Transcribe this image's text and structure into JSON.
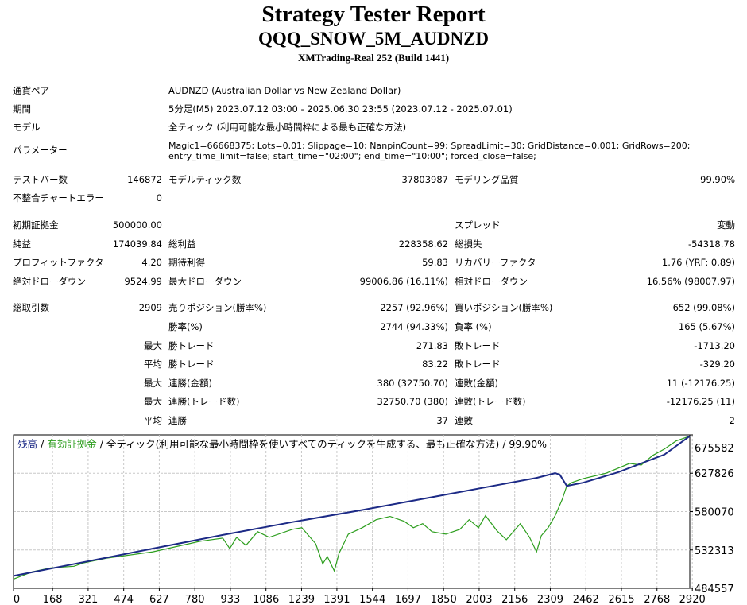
{
  "header": {
    "title": "Strategy Tester Report",
    "subtitle": "QQQ_SNOW_5M_AUDNZD",
    "server": "XMTrading-Real 252 (Build 1441)"
  },
  "info": {
    "pair_label": "通貨ペア",
    "pair": "AUDNZD (Australian Dollar vs New Zealand Dollar)",
    "period_label": "期間",
    "period": "5分足(M5) 2023.07.12 03:00 - 2025.06.30 23:55 (2023.07.12 - 2025.07.01)",
    "model_label": "モデル",
    "model": "全ティック (利用可能な最小時間枠による最も正確な方法)",
    "params_label": "パラメーター",
    "params_line1": "Magic1=66668375; Lots=0.01; Slippage=10; NanpinCount=99; SpreadLimit=30; GridDistance=0.001; GridRows=200;",
    "params_line2": "entry_time_limit=false; start_time=\"02:00\"; end_time=\"10:00\"; forced_close=false;"
  },
  "stats": {
    "bars_label": "テストバー数",
    "bars": "146872",
    "ticks_label": "モデルティック数",
    "ticks": "37803987",
    "quality_label": "モデリング品質",
    "quality": "99.90%",
    "mismatch_label": "不整合チャートエラー",
    "mismatch": "0",
    "deposit_label": "初期証拠金",
    "deposit": "500000.00",
    "spread_label": "スプレッド",
    "spread": "変動",
    "net_label": "純益",
    "net": "174039.84",
    "gross_profit_label": "総利益",
    "gross_profit": "228358.62",
    "gross_loss_label": "総損失",
    "gross_loss": "-54318.78",
    "pf_label": "プロフィットファクタ",
    "pf": "4.20",
    "expected_label": "期待利得",
    "expected": "59.83",
    "recovery_label": "リカバリーファクタ",
    "recovery": "1.76 (YRF: 0.89)",
    "abs_dd_label": "絶対ドローダウン",
    "abs_dd": "9524.99",
    "max_dd_label": "最大ドローダウン",
    "max_dd": "99006.86 (16.11%)",
    "rel_dd_label": "相対ドローダウン",
    "rel_dd": "16.56% (98007.97)",
    "trades_label": "総取引数",
    "trades": "2909",
    "short_label": "売りポジション(勝率%)",
    "short": "2257 (92.96%)",
    "long_label": "買いポジション(勝率%)",
    "long": "652 (99.08%)",
    "winrate_label": "勝率(%)",
    "winrate": "2744 (94.33%)",
    "lossrate_label": "負率 (%)",
    "lossrate": "165 (5.67%)",
    "max_label": "最大",
    "avg_label": "平均",
    "win_trade_label": "勝トレード",
    "loss_trade_label": "敗トレード",
    "max_win": "271.83",
    "max_loss": "-1713.20",
    "avg_win": "83.22",
    "avg_loss": "-329.20",
    "consec_win_amt_label": "連勝(金額)",
    "consec_win_amt": "380 (32750.70)",
    "consec_loss_amt_label": "連敗(金額)",
    "consec_loss_amt": "11 (-12176.25)",
    "consec_win_tr_label": "連勝(トレード数)",
    "consec_win_tr": "32750.70 (380)",
    "consec_loss_tr_label": "連敗(トレード数)",
    "consec_loss_tr": "-12176.25 (11)",
    "avg_consec_win_label": "連勝",
    "avg_consec_win": "37",
    "avg_consec_loss_label": "連敗",
    "avg_consec_loss": "2"
  },
  "chart_data": {
    "type": "line",
    "legend_balance": "残高",
    "legend_sep": " / ",
    "legend_equity": "有効証拠金",
    "legend_rest": " / 全ティック(利用可能な最小時間枠を使いすべてのティックを生成する、最も正確な方法) / 99.90%",
    "x_ticks": [
      0,
      168,
      321,
      474,
      627,
      780,
      933,
      1086,
      1239,
      1391,
      1544,
      1697,
      1850,
      2003,
      2156,
      2309,
      2462,
      2615,
      2768,
      2920
    ],
    "y_ticks": [
      675582,
      627826,
      580070,
      532313,
      484557
    ],
    "xlim": [
      0,
      2909
    ],
    "ylim": [
      484557,
      675582
    ],
    "colors": {
      "balance": "#1c2a86",
      "equity": "#2d9e1e",
      "grid": "#c8c8c8"
    },
    "series": [
      {
        "name": "残高",
        "x": [
          0,
          300,
          600,
          900,
          1200,
          1500,
          1800,
          2100,
          2250,
          2330,
          2350,
          2380,
          2450,
          2600,
          2800,
          2909
        ],
        "y": [
          500000,
          517000,
          534000,
          551000,
          567000,
          582000,
          598000,
          614000,
          622000,
          628000,
          626000,
          612000,
          616000,
          629000,
          651000,
          674000
        ]
      },
      {
        "name": "有効証拠金",
        "x": [
          0,
          80,
          160,
          260,
          300,
          400,
          600,
          800,
          900,
          930,
          960,
          1000,
          1050,
          1100,
          1200,
          1240,
          1300,
          1330,
          1350,
          1380,
          1400,
          1440,
          1500,
          1560,
          1620,
          1680,
          1720,
          1760,
          1800,
          1860,
          1920,
          1960,
          2000,
          2030,
          2080,
          2120,
          2180,
          2220,
          2250,
          2270,
          2300,
          2330,
          2360,
          2380,
          2400,
          2450,
          2550,
          2650,
          2700,
          2750,
          2800,
          2850,
          2909
        ],
        "y": [
          496000,
          505000,
          510000,
          512000,
          516000,
          522000,
          530000,
          543000,
          547000,
          534000,
          548000,
          538000,
          555000,
          548000,
          558000,
          560000,
          540000,
          515000,
          524000,
          506000,
          528000,
          552000,
          560000,
          570000,
          574000,
          568000,
          560000,
          565000,
          555000,
          552000,
          558000,
          570000,
          560000,
          575000,
          556000,
          545000,
          565000,
          548000,
          530000,
          550000,
          560000,
          575000,
          595000,
          612000,
          616000,
          621000,
          628000,
          640000,
          638000,
          650000,
          658000,
          668000,
          674000
        ]
      }
    ]
  }
}
